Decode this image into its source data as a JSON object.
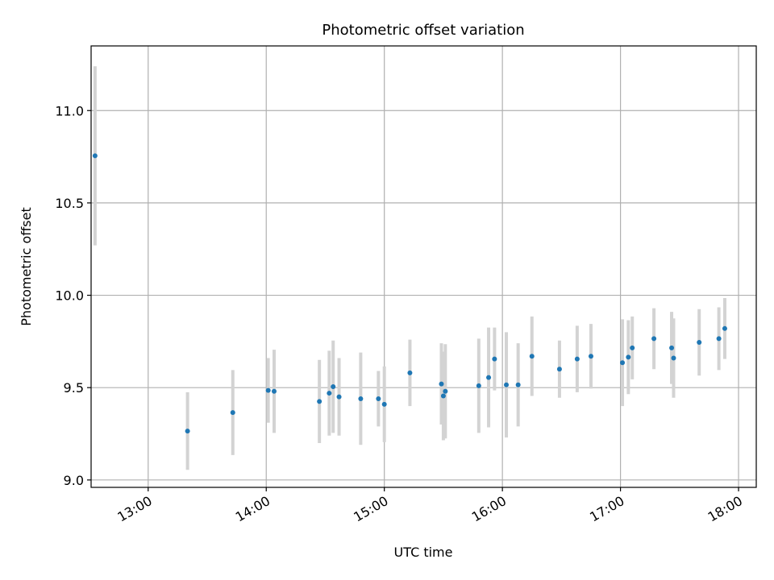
{
  "chart_data": {
    "type": "scatter",
    "title": "Photometric offset variation",
    "xlabel": "UTC time",
    "ylabel": "Photometric offset",
    "x_axis_type": "time",
    "xlim": [
      "12:31",
      "18:09"
    ],
    "ylim": [
      8.96,
      11.35
    ],
    "x_ticks": [
      "13:00",
      "14:00",
      "15:00",
      "16:00",
      "17:00",
      "18:00"
    ],
    "y_ticks": [
      9.0,
      9.5,
      10.0,
      10.5,
      11.0
    ],
    "y_tick_labels": [
      "9.0",
      "9.5",
      "10.0",
      "10.5",
      "11.0"
    ],
    "grid": true,
    "marker_color": "#1f77b4",
    "errorbar_color": "#d3d3d3",
    "series": [
      {
        "points": [
          {
            "x": "12:33",
            "y": 10.755,
            "err": 0.485
          },
          {
            "x": "13:20",
            "y": 9.265,
            "err": 0.21
          },
          {
            "x": "13:43",
            "y": 9.365,
            "err": 0.23
          },
          {
            "x": "14:01",
            "y": 9.485,
            "err": 0.175
          },
          {
            "x": "14:04",
            "y": 9.48,
            "err": 0.225
          },
          {
            "x": "14:27",
            "y": 9.425,
            "err": 0.225
          },
          {
            "x": "14:32",
            "y": 9.47,
            "err": 0.23
          },
          {
            "x": "14:34",
            "y": 9.505,
            "err": 0.25
          },
          {
            "x": "14:37",
            "y": 9.45,
            "err": 0.21
          },
          {
            "x": "14:48",
            "y": 9.44,
            "err": 0.25
          },
          {
            "x": "14:57",
            "y": 9.44,
            "err": 0.15
          },
          {
            "x": "15:00",
            "y": 9.41,
            "err": 0.205
          },
          {
            "x": "15:13",
            "y": 9.58,
            "err": 0.18
          },
          {
            "x": "15:29",
            "y": 9.52,
            "err": 0.22
          },
          {
            "x": "15:30",
            "y": 9.455,
            "err": 0.24
          },
          {
            "x": "15:31",
            "y": 9.48,
            "err": 0.255
          },
          {
            "x": "15:48",
            "y": 9.51,
            "err": 0.255
          },
          {
            "x": "15:53",
            "y": 9.555,
            "err": 0.27
          },
          {
            "x": "15:56",
            "y": 9.655,
            "err": 0.17
          },
          {
            "x": "16:02",
            "y": 9.515,
            "err": 0.285
          },
          {
            "x": "16:08",
            "y": 9.515,
            "err": 0.225
          },
          {
            "x": "16:15",
            "y": 9.67,
            "err": 0.215
          },
          {
            "x": "16:29",
            "y": 9.6,
            "err": 0.155
          },
          {
            "x": "16:38",
            "y": 9.655,
            "err": 0.18
          },
          {
            "x": "16:45",
            "y": 9.67,
            "err": 0.175
          },
          {
            "x": "17:01",
            "y": 9.635,
            "err": 0.235
          },
          {
            "x": "17:04",
            "y": 9.665,
            "err": 0.2
          },
          {
            "x": "17:06",
            "y": 9.715,
            "err": 0.17
          },
          {
            "x": "17:17",
            "y": 9.765,
            "err": 0.165
          },
          {
            "x": "17:26",
            "y": 9.715,
            "err": 0.195
          },
          {
            "x": "17:27",
            "y": 9.66,
            "err": 0.215
          },
          {
            "x": "17:40",
            "y": 9.745,
            "err": 0.18
          },
          {
            "x": "17:50",
            "y": 9.765,
            "err": 0.17
          },
          {
            "x": "17:53",
            "y": 9.82,
            "err": 0.165
          }
        ]
      }
    ]
  }
}
